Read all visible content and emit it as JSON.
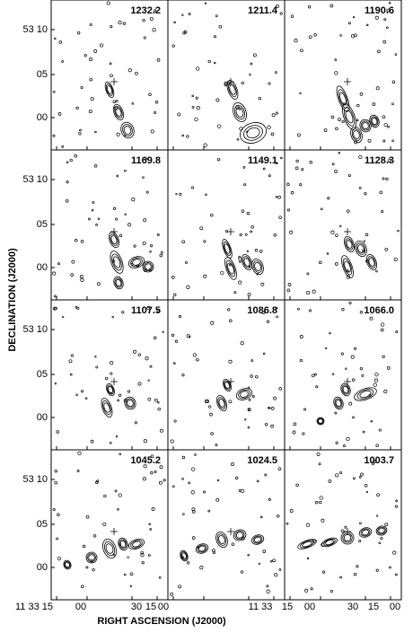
{
  "panels": [
    {
      "velocity": "1232.2"
    },
    {
      "velocity": "1211.4"
    },
    {
      "velocity": "1190.6"
    },
    {
      "velocity": "1169.8"
    },
    {
      "velocity": "1149.1"
    },
    {
      "velocity": "1128.3"
    },
    {
      "velocity": "1107.5"
    },
    {
      "velocity": "1086.8"
    },
    {
      "velocity": "1066.0"
    },
    {
      "velocity": "1045.2"
    },
    {
      "velocity": "1024.5"
    },
    {
      "velocity": "1003.7"
    }
  ],
  "y_axis": {
    "label": "DECLINATION (J2000)",
    "ticks": [
      "53 10",
      "05",
      "00"
    ]
  },
  "x_axis": {
    "label": "RIGHT ASCENSION (J2000)",
    "ticks": [
      "11 33 15",
      "00",
      "30",
      "15",
      "00",
      "11 33",
      "15",
      "00",
      "30",
      "15",
      "00"
    ]
  }
}
